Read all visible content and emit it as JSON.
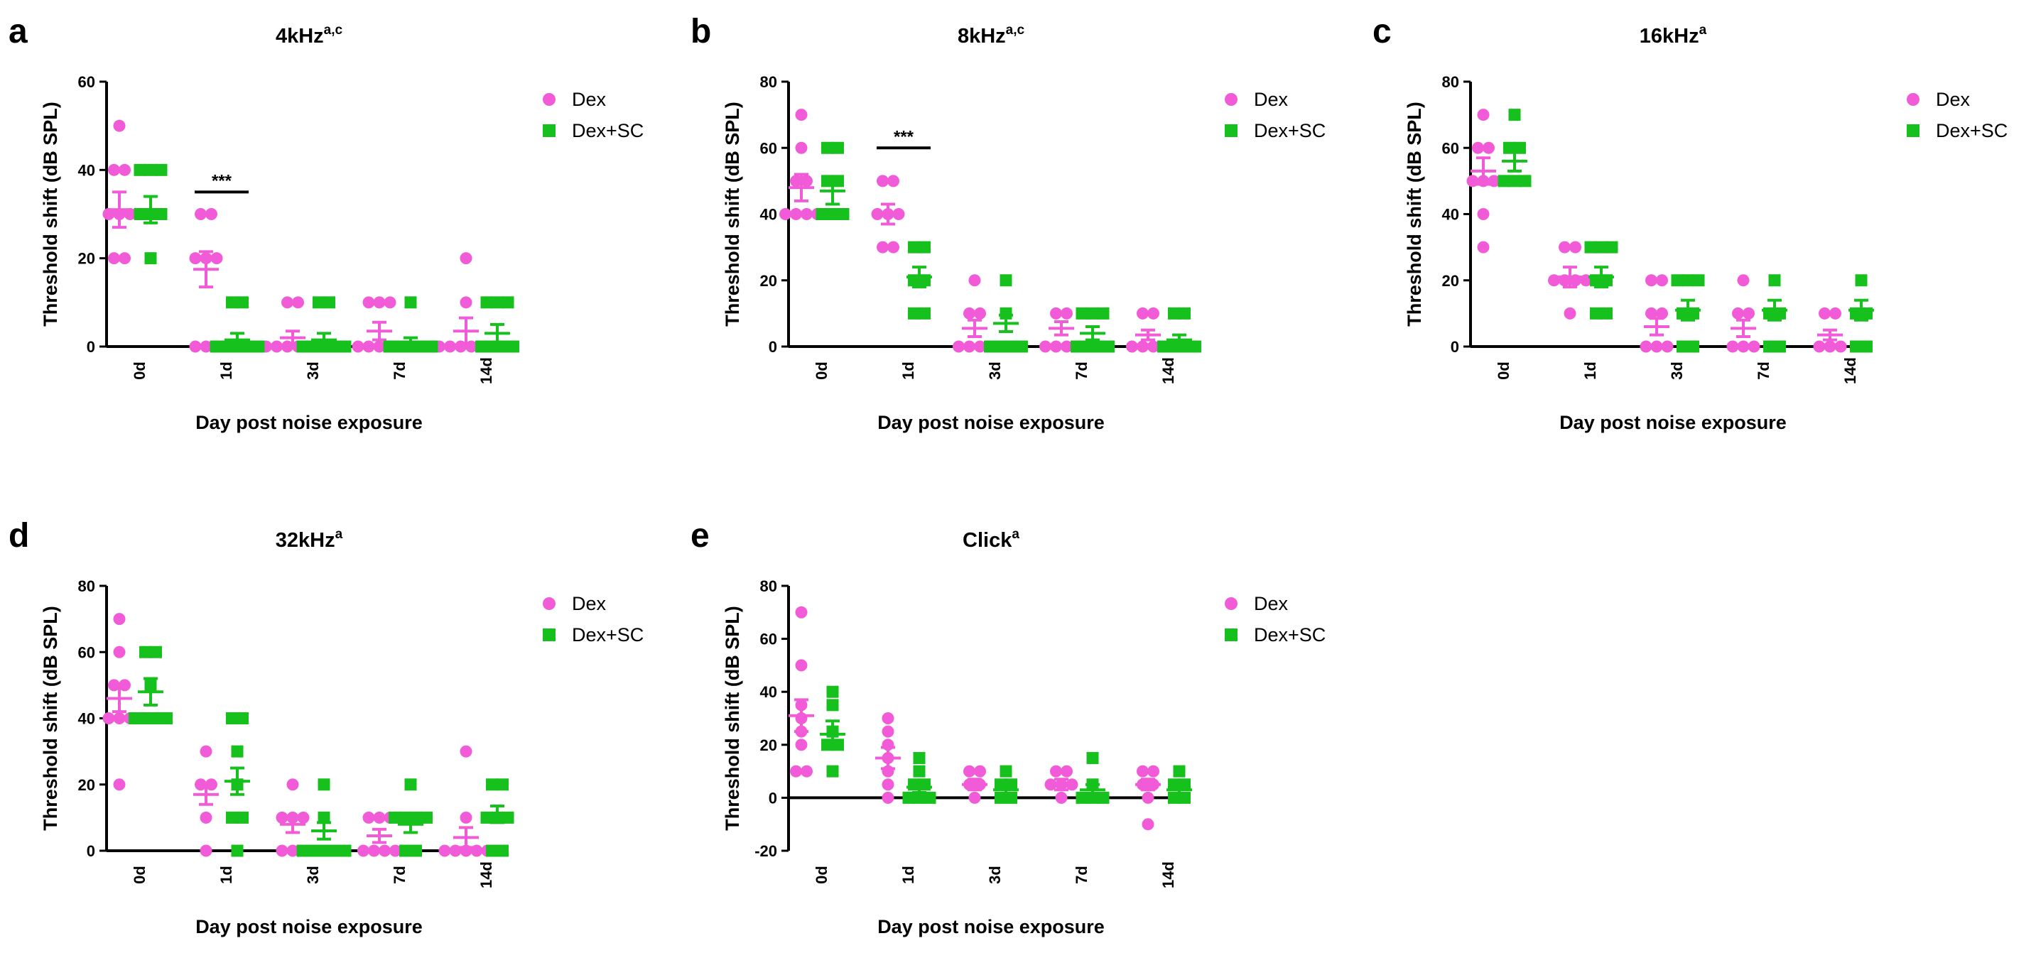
{
  "figure": {
    "legend_labels": [
      "Dex",
      "Dex+SC"
    ],
    "colors": {
      "dex": "#F15BD8",
      "dexsc": "#17C11D"
    },
    "xlabel": "Day post noise exposure",
    "ylabel": "Threshold shift (dB SPL)"
  },
  "chart_data": [
    {
      "panel_label": "a",
      "title": "4kHz",
      "superscript": "a,c",
      "type": "scatter",
      "categories": [
        "0d",
        "1d",
        "3d",
        "7d",
        "14d"
      ],
      "ylim": [
        0,
        60
      ],
      "yticks": [
        0,
        20,
        40,
        60
      ],
      "xlabel": "Day post noise exposure",
      "ylabel": "Threshold shift (dB SPL)",
      "series": [
        {
          "name": "Dex",
          "points": [
            [
              50,
              40,
              40,
              30,
              30,
              30,
              20,
              20
            ],
            [
              30,
              30,
              20,
              20,
              20,
              0,
              0,
              0
            ],
            [
              10,
              10,
              0,
              0,
              0,
              0,
              0,
              0
            ],
            [
              10,
              10,
              10,
              0,
              0,
              0,
              0,
              0
            ],
            [
              20,
              10,
              0,
              0,
              0,
              0,
              0,
              0
            ]
          ],
          "mean": [
            31,
            17.5,
            2,
            3.5,
            3.5
          ],
          "sem": [
            4,
            4,
            1.5,
            2,
            3
          ]
        },
        {
          "name": "Dex+SC",
          "points": [
            [
              40,
              40,
              40,
              30,
              30,
              30,
              20
            ],
            [
              10,
              10,
              0,
              0,
              0,
              0,
              0
            ],
            [
              10,
              10,
              0,
              0,
              0,
              0,
              0
            ],
            [
              10,
              0,
              0,
              0,
              0,
              0
            ],
            [
              10,
              10,
              10,
              0,
              0,
              0,
              0
            ]
          ],
          "mean": [
            31,
            1.5,
            1.5,
            1,
            3
          ],
          "sem": [
            3,
            1.5,
            1.5,
            1,
            2
          ]
        }
      ],
      "annotations": [
        {
          "category": "1d",
          "y": 35,
          "text": "***"
        }
      ]
    },
    {
      "panel_label": "b",
      "title": "8kHz",
      "superscript": "a,c",
      "type": "scatter",
      "categories": [
        "0d",
        "1d",
        "3d",
        "7d",
        "14d"
      ],
      "ylim": [
        0,
        80
      ],
      "yticks": [
        0,
        20,
        40,
        60,
        80
      ],
      "xlabel": "Day post noise exposure",
      "ylabel": "Threshold shift (dB SPL)",
      "series": [
        {
          "name": "Dex",
          "points": [
            [
              70,
              60,
              50,
              50,
              40,
              40,
              40,
              40
            ],
            [
              50,
              50,
              40,
              40,
              40,
              30,
              30
            ],
            [
              20,
              10,
              10,
              0,
              0,
              0,
              0
            ],
            [
              10,
              10,
              0,
              0,
              0,
              0
            ],
            [
              10,
              10,
              0,
              0,
              0,
              0
            ]
          ],
          "mean": [
            48,
            40,
            5.5,
            5.5,
            3.5
          ],
          "sem": [
            4,
            3,
            2.5,
            2,
            1.5
          ]
        },
        {
          "name": "Dex+SC",
          "points": [
            [
              60,
              60,
              50,
              50,
              40,
              40,
              40
            ],
            [
              30,
              30,
              20,
              20,
              10,
              10
            ],
            [
              20,
              10,
              0,
              0,
              0,
              0
            ],
            [
              10,
              10,
              10,
              0,
              0,
              0,
              0
            ],
            [
              10,
              10,
              0,
              0,
              0,
              0
            ]
          ],
          "mean": [
            47,
            21,
            7,
            4,
            2
          ],
          "sem": [
            4,
            3,
            2.5,
            2,
            1.5
          ]
        }
      ],
      "annotations": [
        {
          "category": "1d",
          "y": 60,
          "text": "***"
        }
      ]
    },
    {
      "panel_label": "c",
      "title": "16kHz",
      "superscript": "a",
      "type": "scatter",
      "categories": [
        "0d",
        "1d",
        "3d",
        "7d",
        "14d"
      ],
      "ylim": [
        0,
        80
      ],
      "yticks": [
        0,
        20,
        40,
        60,
        80
      ],
      "xlabel": "Day post noise exposure",
      "ylabel": "Threshold shift (dB SPL)",
      "series": [
        {
          "name": "Dex",
          "points": [
            [
              70,
              60,
              60,
              50,
              50,
              50,
              40,
              30
            ],
            [
              30,
              30,
              20,
              20,
              20,
              20,
              10
            ],
            [
              20,
              20,
              10,
              10,
              0,
              0,
              0
            ],
            [
              20,
              10,
              10,
              0,
              0,
              0
            ],
            [
              10,
              10,
              0,
              0,
              0
            ]
          ],
          "mean": [
            53,
            21,
            6,
            5.5,
            3.5
          ],
          "sem": [
            4,
            3,
            2.5,
            2.5,
            1.5
          ]
        },
        {
          "name": "Dex+SC",
          "points": [
            [
              70,
              60,
              60,
              50,
              50,
              50
            ],
            [
              30,
              30,
              30,
              20,
              20,
              10,
              10
            ],
            [
              20,
              20,
              20,
              10,
              10,
              0,
              0
            ],
            [
              20,
              10,
              10,
              0,
              0
            ],
            [
              20,
              10,
              10,
              0,
              0
            ]
          ],
          "mean": [
            56,
            21,
            11,
            11,
            11
          ],
          "sem": [
            3,
            3,
            3,
            3,
            3
          ]
        }
      ],
      "annotations": []
    },
    {
      "panel_label": "d",
      "title": "32kHz",
      "superscript": "a",
      "type": "scatter",
      "categories": [
        "0d",
        "1d",
        "3d",
        "7d",
        "14d"
      ],
      "ylim": [
        0,
        80
      ],
      "yticks": [
        0,
        20,
        40,
        60,
        80
      ],
      "xlabel": "Day post noise exposure",
      "ylabel": "Threshold shift (dB SPL)",
      "series": [
        {
          "name": "Dex",
          "points": [
            [
              70,
              60,
              50,
              50,
              40,
              40,
              40,
              20
            ],
            [
              30,
              20,
              20,
              10,
              0
            ],
            [
              20,
              10,
              10,
              10,
              0,
              0,
              0
            ],
            [
              10,
              10,
              10,
              0,
              0,
              0,
              0
            ],
            [
              30,
              10,
              0,
              0,
              0,
              0,
              0
            ]
          ],
          "mean": [
            46,
            17,
            8,
            4.5,
            4
          ],
          "sem": [
            4,
            3,
            2.5,
            2,
            3
          ]
        },
        {
          "name": "Dex+SC",
          "points": [
            [
              60,
              60,
              50,
              40,
              40,
              40,
              40
            ],
            [
              40,
              40,
              30,
              20,
              10,
              10,
              0
            ],
            [
              20,
              10,
              0,
              0,
              0,
              0,
              0
            ],
            [
              20,
              10,
              10,
              10,
              10,
              0,
              0
            ],
            [
              20,
              20,
              10,
              10,
              10,
              0,
              0
            ]
          ],
          "mean": [
            48,
            21,
            6,
            8,
            11
          ],
          "sem": [
            4,
            4,
            2.5,
            2.5,
            2.5
          ]
        }
      ],
      "annotations": []
    },
    {
      "panel_label": "e",
      "title": "Click",
      "superscript": "a",
      "type": "scatter",
      "categories": [
        "0d",
        "1d",
        "3d",
        "7d",
        "14d"
      ],
      "ylim": [
        -20,
        80
      ],
      "yticks": [
        -20,
        0,
        20,
        40,
        60,
        80
      ],
      "xlabel": "Day post noise exposure",
      "ylabel": "Threshold shift (dB SPL)",
      "series": [
        {
          "name": "Dex",
          "points": [
            [
              70,
              50,
              35,
              30,
              25,
              20,
              10,
              10
            ],
            [
              30,
              25,
              20,
              15,
              10,
              5,
              0
            ],
            [
              10,
              10,
              5,
              5,
              0
            ],
            [
              10,
              10,
              5,
              5,
              5,
              0
            ],
            [
              10,
              10,
              5,
              5,
              0,
              -10
            ]
          ],
          "mean": [
            31,
            15,
            5,
            5,
            5
          ],
          "sem": [
            6,
            4,
            2,
            2,
            2
          ]
        },
        {
          "name": "Dex+SC",
          "points": [
            [
              40,
              35,
              25,
              20,
              20,
              10
            ],
            [
              15,
              10,
              5,
              5,
              0,
              0,
              0
            ],
            [
              10,
              5,
              5,
              0,
              0
            ],
            [
              15,
              5,
              0,
              0,
              0
            ],
            [
              10,
              5,
              5,
              0,
              0
            ]
          ],
          "mean": [
            24,
            4,
            3,
            3,
            3
          ],
          "sem": [
            5,
            2,
            2,
            2,
            2
          ]
        }
      ],
      "annotations": []
    }
  ]
}
